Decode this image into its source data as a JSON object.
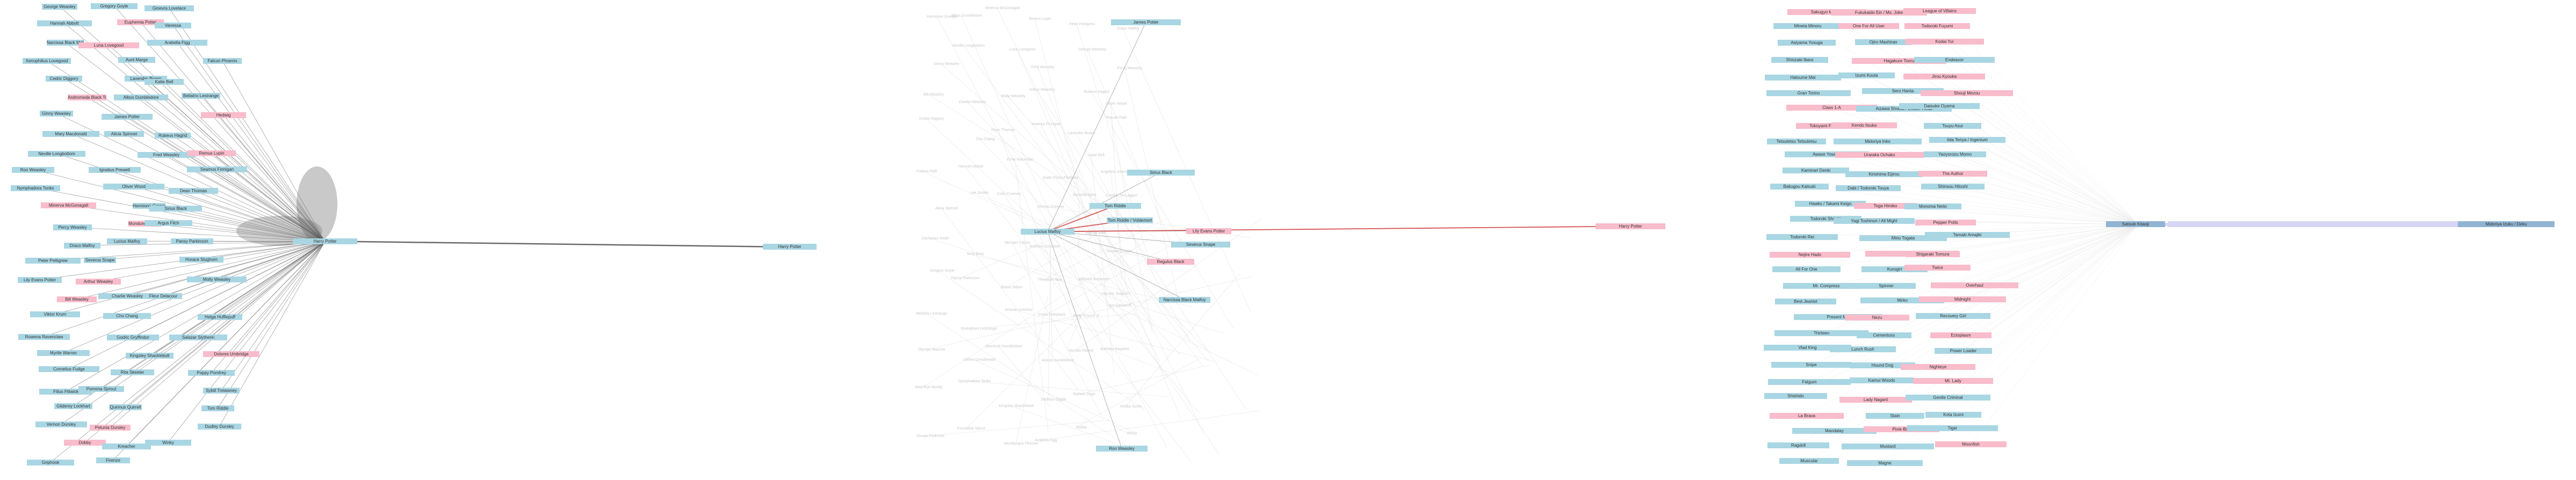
{
  "colors": {
    "blue_node": "#a9d6e3",
    "pink_node": "#f8bccb",
    "edge_dark": "#555555",
    "edge_red": "#d04040",
    "edge_faint": "#dddddd"
  },
  "left_cluster": {
    "hub_label": "Harry Potter",
    "far_label": "Harry Potter",
    "nodes": [
      "George Weasley",
      "Gregory Goyle",
      "Ginevra Lovelace",
      "Hannah Abbott",
      "Euphemia Potter",
      "Vanessa",
      "Narcissa Black Malfoy",
      "Luna Lovegood",
      "Arabella Figg",
      "Xenophilius Lovegood",
      "Aunt Marge",
      "Falcon Phoenix",
      "Cedric Diggory",
      "Lavender Brown",
      "Katie Bell",
      "Andromeda Black Tonks",
      "Albus Dumbledore",
      "Bellatrix Lestrange",
      "Ginny Weasley",
      "James Potter",
      "Hedwig",
      "Mary Macdonald",
      "Alicia Spinnet",
      "Rubeus Hagrid",
      "Neville Longbottom",
      "Fred Weasley",
      "Remus Lupin",
      "Ron Weasley",
      "Ignatius Prewett",
      "Seamus Finnigan",
      "Nymphadora Tonks",
      "Oliver Wood",
      "Dean Thomas",
      "Minerva McGonagall",
      "Hermione Granger",
      "Sirius Black",
      "Percy Weasley",
      "Mundungus Fletcher",
      "Argus Filch",
      "Draco Malfoy",
      "Lucius Malfoy",
      "Pansy Parkinson",
      "Peter Pettigrew",
      "Severus Snape",
      "Horace Slughorn",
      "Lily Evans Potter",
      "Arthur Weasley",
      "Molly Weasley",
      "Bill Weasley",
      "Charlie Weasley",
      "Fleur Delacour",
      "Viktor Krum",
      "Cho Chang",
      "Helga Hufflepuff",
      "Rowena Ravenclaw",
      "Godric Gryffindor",
      "Salazar Slytherin",
      "Myrtle Warren",
      "Kingsley Shacklebolt",
      "Dolores Umbridge",
      "Cornelius Fudge",
      "Rita Skeeter",
      "Poppy Pomfrey",
      "Filius Flitwick",
      "Pomona Sprout",
      "Sybill Trelawney",
      "Gilderoy Lockhart",
      "Quirinus Quirrell",
      "Tom Riddle",
      "Vernon Dursley",
      "Petunia Dursley",
      "Dudley Dursley",
      "Dobby",
      "Kreacher",
      "Winky",
      "Griphook",
      "Firenze"
    ]
  },
  "middle_cluster": {
    "hub_label": "Lucius Malfoy",
    "nodes": [
      "James Potter",
      "Sirius Black",
      "Tom Riddle",
      "Tom Riddle / Voldemort",
      "Lily Evans Potter",
      "Regulus Black",
      "Narcissa Black Malfoy",
      "Ron Weasley",
      "Severus Snape"
    ],
    "faint_nodes": [
      "Hermione Granger",
      "Albus Dumbledore",
      "Minerva McGonagall",
      "Remus Lupin",
      "Peter Pettigrew",
      "Draco Malfoy",
      "Ginny Weasley",
      "Neville Longbottom",
      "Luna Lovegood",
      "Fred Weasley",
      "George Weasley",
      "Percy Weasley",
      "Bill Weasley",
      "Charlie Weasley",
      "Molly Weasley",
      "Arthur Weasley",
      "Rubeus Hagrid",
      "Oliver Wood",
      "Cedric Diggory",
      "Cho Chang",
      "Dean Thomas",
      "Seamus Finnigan",
      "Lavender Brown",
      "Parvati Patil",
      "Padma Patil",
      "Hannah Abbott",
      "Ernie Macmillan",
      "Justin Finch-Fletchley",
      "Katie Bell",
      "Angelina Johnson",
      "Alicia Spinnet",
      "Lee Jordan",
      "Colin Creevey",
      "Dennis Creevey",
      "Romilda Vane",
      "Cormac McLaggen",
      "Zacharias Smith",
      "Terry Boot",
      "Michael Corner",
      "Anthony Goldstein",
      "Marcus Flint",
      "Vincent Crabbe",
      "Gregory Goyle",
      "Pansy Parkinson",
      "Blaise Zabini",
      "Theodore Nott",
      "Millicent Bulstrode",
      "Horace Slughorn",
      "Bellatrix Lestrange",
      "Rodolphus Lestrange",
      "Antonin Dolohov",
      "Fenrir Greyback",
      "Barty Crouch Jr",
      "Igor Karkaroff",
      "Olympe Maxime",
      "Gellert Grindelwald",
      "Aberforth Dumbledore",
      "Ariana Dumbledore",
      "Nicolas Flamel",
      "Bathilda Bagshot",
      "Mad-Eye Moody",
      "Nymphadora Tonks",
      "Kingsley Shacklebolt",
      "Dedalus Diggle",
      "Elphias Doge",
      "Hestia Jones",
      "Sturgis Podmore",
      "Emmeline Vance",
      "Mundungus Fletcher",
      "Arabella Figg",
      "Dobby",
      "Winky",
      "Kreacher"
    ]
  },
  "far_node": "Harry Potter",
  "right_cluster": {
    "hub_label": "Satsuki Kitaoji",
    "far_label": "Midoriya Izuku / Deku",
    "nodes": [
      {
        "label": "Sakugyo Mikado",
        "color": "pink"
      },
      {
        "label": "Fukukaido Ein / Ms. Joke",
        "color": "pink"
      },
      {
        "label": "League of Villains",
        "color": "pink"
      },
      {
        "label": "Mineta Minoru",
        "color": "blue"
      },
      {
        "label": "One For All User",
        "color": "pink"
      },
      {
        "label": "Todoroki Fuyumi",
        "color": "pink"
      },
      {
        "label": "Asiyama Yosuga",
        "color": "blue"
      },
      {
        "label": "Ojiro Mashirao",
        "color": "blue"
      },
      {
        "label": "Kodai Yui",
        "color": "pink"
      },
      {
        "label": "Shiozaki Ibara",
        "color": "blue"
      },
      {
        "label": "Hagakure Tooru",
        "color": "pink"
      },
      {
        "label": "Endeavor",
        "color": "blue"
      },
      {
        "label": "Hatsume Mei",
        "color": "blue"
      },
      {
        "label": "Izumi Kouta",
        "color": "blue"
      },
      {
        "label": "Jirou Kyouka",
        "color": "pink"
      },
      {
        "label": "Gran Torino",
        "color": "blue"
      },
      {
        "label": "Sero Hanta",
        "color": "blue"
      },
      {
        "label": "Shouji Mezou",
        "color": "pink"
      },
      {
        "label": "Class 1-A",
        "color": "pink"
      },
      {
        "label": "Aizawa Shouta / Eraser Head",
        "color": "blue"
      },
      {
        "label": "Daisuke Oyama",
        "color": "blue"
      },
      {
        "label": "Tokoyami Fumikage",
        "color": "pink"
      },
      {
        "label": "Kendo Itsuka",
        "color": "pink"
      },
      {
        "label": "Tsuyu Asui",
        "color": "blue"
      },
      {
        "label": "Tetsutetsu Tetsutetsu",
        "color": "blue"
      },
      {
        "label": "Midoriya Inko",
        "color": "blue"
      },
      {
        "label": "Iida Tenya / Ingenium",
        "color": "blue"
      },
      {
        "label": "Awase Yosetsu",
        "color": "blue"
      },
      {
        "label": "Uraraka Ochako",
        "color": "pink"
      },
      {
        "label": "Yaoyorozu Momo",
        "color": "blue"
      },
      {
        "label": "Kaminari Denki",
        "color": "blue"
      },
      {
        "label": "Kirishima Eijirou",
        "color": "blue"
      },
      {
        "label": "The Author",
        "color": "pink"
      },
      {
        "label": "Bakugou Katsuki",
        "color": "blue"
      },
      {
        "label": "Dabi / Todoroki Touya",
        "color": "blue"
      },
      {
        "label": "Shinsou Hitoshi",
        "color": "blue"
      },
      {
        "label": "Hawks / Takami Keigo",
        "color": "blue"
      },
      {
        "label": "Toga Himiko",
        "color": "pink"
      },
      {
        "label": "Monoma Neito",
        "color": "blue"
      },
      {
        "label": "Todoroki Shouto",
        "color": "blue"
      },
      {
        "label": "Yagi Toshinori / All Might",
        "color": "blue"
      },
      {
        "label": "Pepper Potts",
        "color": "pink"
      },
      {
        "label": "Todoroki Rei",
        "color": "blue"
      },
      {
        "label": "Mirio Togata",
        "color": "blue"
      },
      {
        "label": "Tamaki Amajiki",
        "color": "blue"
      },
      {
        "label": "Nejire Hado",
        "color": "pink"
      },
      {
        "label": "Eri",
        "color": "pink"
      },
      {
        "label": "Shigaraki Tomura",
        "color": "pink"
      },
      {
        "label": "All For One",
        "color": "blue"
      },
      {
        "label": "Kurogiri",
        "color": "blue"
      },
      {
        "label": "Twice",
        "color": "pink"
      },
      {
        "label": "Mr. Compress",
        "color": "blue"
      },
      {
        "label": "Spinner",
        "color": "blue"
      },
      {
        "label": "Overhaul",
        "color": "pink"
      },
      {
        "label": "Best Jeanist",
        "color": "blue"
      },
      {
        "label": "Mirko",
        "color": "blue"
      },
      {
        "label": "Midnight",
        "color": "pink"
      },
      {
        "label": "Present Mic",
        "color": "blue"
      },
      {
        "label": "Nezu",
        "color": "pink"
      },
      {
        "label": "Recovery Girl",
        "color": "blue"
      },
      {
        "label": "Thirteen",
        "color": "blue"
      },
      {
        "label": "Cementoss",
        "color": "blue"
      },
      {
        "label": "Ectoplasm",
        "color": "pink"
      },
      {
        "label": "Vlad King",
        "color": "blue"
      },
      {
        "label": "Lunch Rush",
        "color": "blue"
      },
      {
        "label": "Power Loader",
        "color": "blue"
      },
      {
        "label": "Snipe",
        "color": "blue"
      },
      {
        "label": "Hound Dog",
        "color": "blue"
      },
      {
        "label": "Nighteye",
        "color": "pink"
      },
      {
        "label": "Fatgum",
        "color": "blue"
      },
      {
        "label": "Kamui Woods",
        "color": "blue"
      },
      {
        "label": "Mt. Lady",
        "color": "pink"
      },
      {
        "label": "Shishido",
        "color": "blue"
      },
      {
        "label": "Lady Nagant",
        "color": "pink"
      },
      {
        "label": "Gentle Criminal",
        "color": "blue"
      },
      {
        "label": "La Brava",
        "color": "pink"
      },
      {
        "label": "Stain",
        "color": "blue"
      },
      {
        "label": "Kota Izumi",
        "color": "blue"
      },
      {
        "label": "Mandalay",
        "color": "blue"
      },
      {
        "label": "Pixie-Bob",
        "color": "pink"
      },
      {
        "label": "Tiger",
        "color": "blue"
      },
      {
        "label": "Ragdoll",
        "color": "blue"
      },
      {
        "label": "Mustard",
        "color": "blue"
      },
      {
        "label": "Moonfish",
        "color": "pink"
      },
      {
        "label": "Muscular",
        "color": "blue"
      },
      {
        "label": "Magne",
        "color": "blue"
      }
    ]
  }
}
